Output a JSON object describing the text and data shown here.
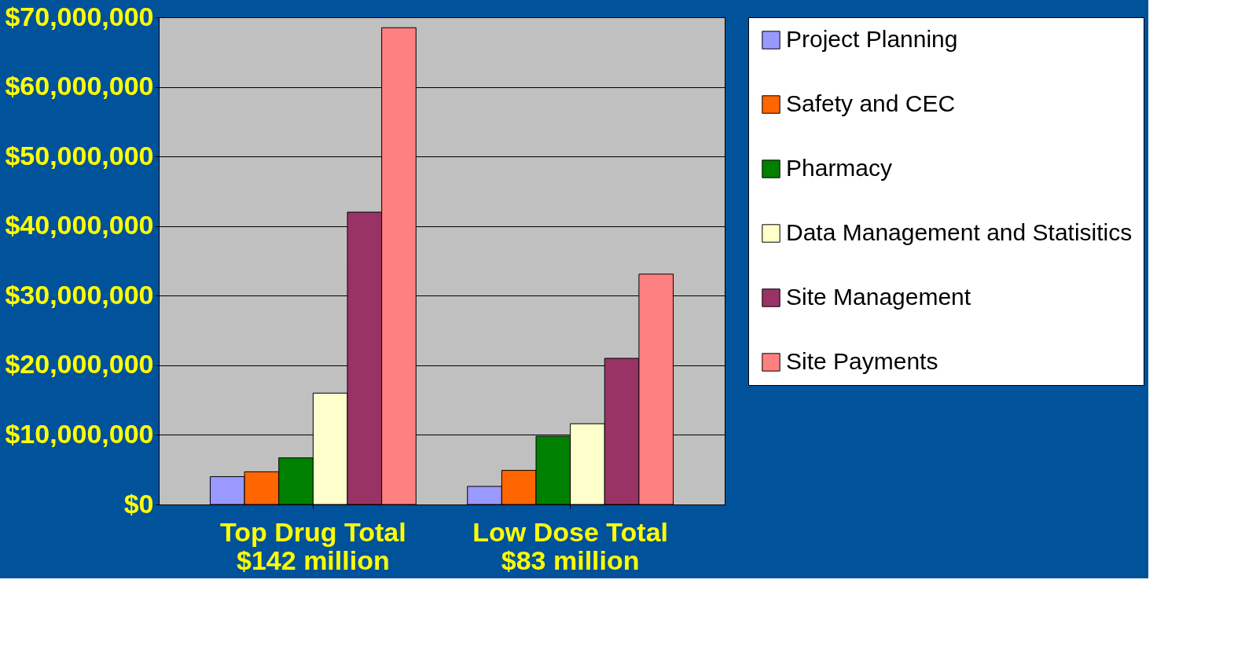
{
  "chart_data": {
    "type": "bar",
    "categories": [
      "Top Drug Total\n$142 million",
      "Low Dose Total\n$83 million"
    ],
    "series": [
      {
        "name": "Project Planning",
        "color": "#9999ff",
        "values": [
          4000000,
          2600000
        ]
      },
      {
        "name": "Safety and CEC",
        "color": "#ff6600",
        "values": [
          4700000,
          4900000
        ]
      },
      {
        "name": "Pharmacy",
        "color": "#008000",
        "values": [
          6700000,
          9800000
        ]
      },
      {
        "name": "Data Management and Statisitics",
        "color": "#ffffcc",
        "values": [
          16000000,
          11600000
        ]
      },
      {
        "name": "Site Management",
        "color": "#993366",
        "values": [
          42000000,
          21000000
        ]
      },
      {
        "name": "Site Payments",
        "color": "#ff8080",
        "values": [
          68500000,
          33100000
        ]
      }
    ],
    "ylim": [
      0,
      70000000
    ],
    "yticks": [
      {
        "value": 0,
        "label": "$0"
      },
      {
        "value": 10000000,
        "label": "$10,000,000"
      },
      {
        "value": 20000000,
        "label": "$20,000,000"
      },
      {
        "value": 30000000,
        "label": "$30,000,000"
      },
      {
        "value": 40000000,
        "label": "$40,000,000"
      },
      {
        "value": 50000000,
        "label": "$50,000,000"
      },
      {
        "value": 60000000,
        "label": "$60,000,000"
      },
      {
        "value": 70000000,
        "label": "$70,000,000"
      }
    ],
    "grid": "y",
    "legend": "right"
  }
}
